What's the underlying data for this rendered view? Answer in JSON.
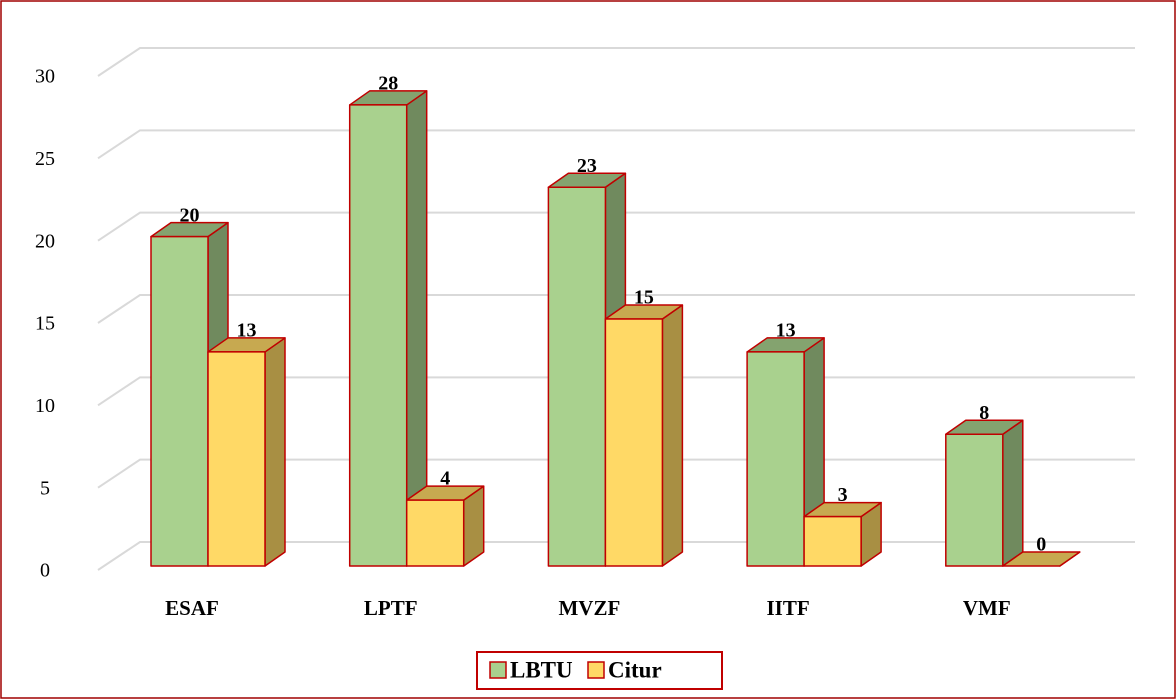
{
  "chart_data": {
    "type": "bar3d",
    "categories": [
      "ESAF",
      "LPTF",
      "MVZF",
      "IITF",
      "VMF"
    ],
    "series": [
      {
        "name": "LBTU",
        "color": "#a9d18e",
        "values": [
          20,
          28,
          23,
          13,
          8
        ]
      },
      {
        "name": "Citur",
        "color": "#ffd966",
        "values": [
          13,
          4,
          15,
          3,
          0
        ]
      }
    ],
    "ylim": [
      0,
      30
    ],
    "yticks": [
      0,
      5,
      10,
      15,
      20,
      25,
      30
    ],
    "grid": true,
    "legend": "bottom"
  }
}
